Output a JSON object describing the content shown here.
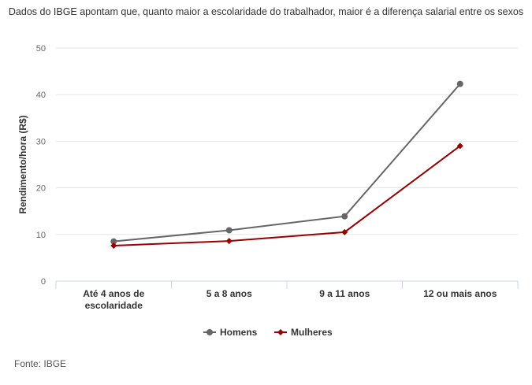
{
  "chart_data": {
    "type": "line",
    "title": "Dados do IBGE apontam que, quanto maior a escolaridade do trabalhador, maior é a diferença salarial entre os sexos",
    "ylabel": "Rendimento/hora (R$)",
    "xlabel": "",
    "categories": [
      [
        "Até 4 anos de",
        "escolaridade"
      ],
      [
        "5 a 8 anos"
      ],
      [
        "9 a 11 anos"
      ],
      [
        "12 ou mais anos"
      ]
    ],
    "ylim": [
      0,
      50
    ],
    "yticks": [
      "0",
      "10",
      "20",
      "30",
      "40",
      "50"
    ],
    "grid": true,
    "legend_position": "bottom",
    "series": [
      {
        "name": "Homens",
        "values": [
          8.5,
          10.9,
          13.9,
          42.3
        ],
        "color": "#666666",
        "marker": "circle"
      },
      {
        "name": "Mulheres",
        "values": [
          7.6,
          8.6,
          10.5,
          29.0
        ],
        "color": "#990000",
        "marker": "diamond"
      }
    ]
  },
  "source": "Fonte: IBGE"
}
